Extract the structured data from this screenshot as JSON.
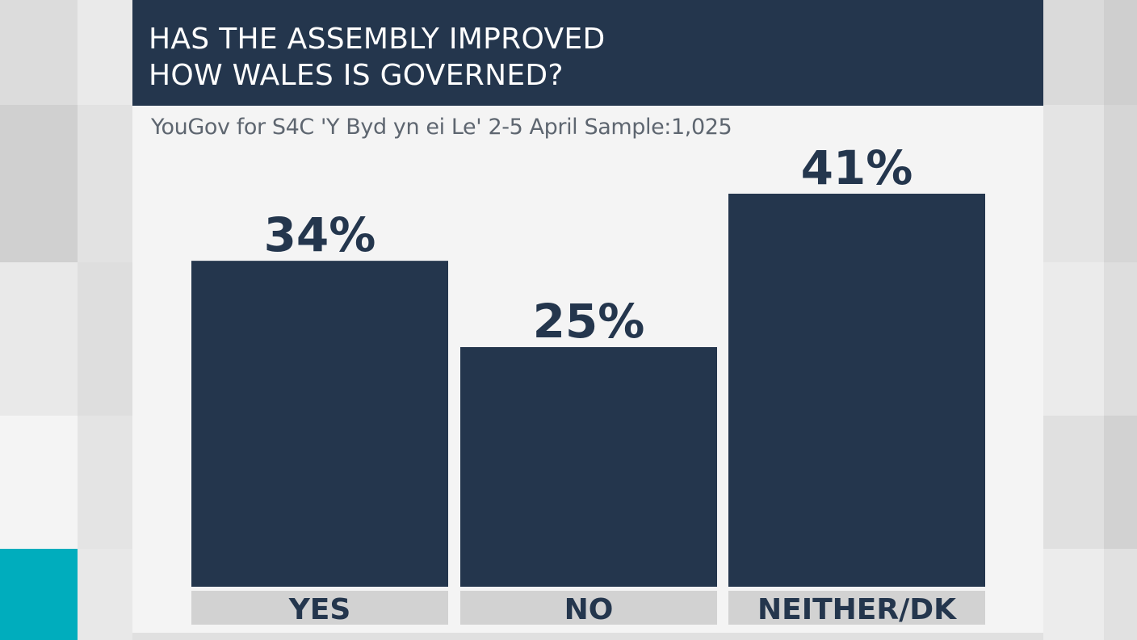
{
  "header": {
    "title_lines": [
      "HAS THE ASSEMBLY IMPROVED",
      "HOW WALES IS GOVERNED?"
    ],
    "subtitle": "YouGov for S4C 'Y Byd yn ei Le' 2-5 April Sample:1,025"
  },
  "colors": {
    "bar": "#24364d",
    "category_box": "#d2d2d2",
    "accent": "#00adbd"
  },
  "chart_data": {
    "type": "bar",
    "title": "HAS THE ASSEMBLY IMPROVED HOW WALES IS GOVERNED?",
    "subtitle": "YouGov for S4C 'Y Byd yn ei Le' 2-5 April Sample:1,025",
    "categories": [
      "YES",
      "NO",
      "NEITHER/DK"
    ],
    "values": [
      34,
      25,
      41
    ],
    "data_labels": [
      "34%",
      "25%",
      "41%"
    ],
    "xlabel": "",
    "ylabel": "",
    "ylim": [
      0,
      41
    ],
    "grid": false,
    "legend": "none"
  }
}
